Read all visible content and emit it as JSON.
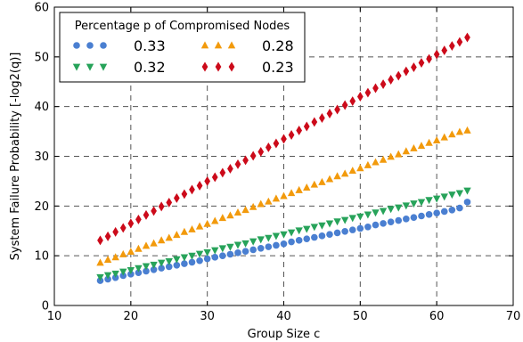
{
  "chart_data": {
    "type": "scatter",
    "xlabel": "Group Size c",
    "ylabel": "System Failure Probability [-log2(q)]",
    "xlim": [
      10,
      70
    ],
    "ylim": [
      0,
      60
    ],
    "xticks": [
      10,
      20,
      30,
      40,
      50,
      60,
      70
    ],
    "yticks": [
      0,
      10,
      20,
      30,
      40,
      50,
      60
    ],
    "grid": true,
    "legend": {
      "title": "Percentage p of Compromised Nodes",
      "placement": "top-left",
      "columns": 2
    },
    "x": [
      16,
      17,
      18,
      19,
      20,
      21,
      22,
      23,
      24,
      25,
      26,
      27,
      28,
      29,
      30,
      31,
      32,
      33,
      34,
      35,
      36,
      37,
      38,
      39,
      40,
      41,
      42,
      43,
      44,
      45,
      46,
      47,
      48,
      49,
      50,
      51,
      52,
      53,
      54,
      55,
      56,
      57,
      58,
      59,
      60,
      61,
      62,
      63,
      64
    ],
    "series": [
      {
        "name": "0.33",
        "marker": "circle",
        "color": "#4a7fd1",
        "values": [
          5.0,
          5.3,
          5.6,
          6.0,
          6.3,
          6.6,
          6.9,
          7.2,
          7.5,
          7.8,
          8.1,
          8.4,
          8.7,
          9.0,
          9.4,
          9.7,
          10.0,
          10.3,
          10.6,
          10.9,
          11.2,
          11.5,
          11.8,
          12.1,
          12.4,
          12.8,
          13.1,
          13.4,
          13.7,
          14.0,
          14.3,
          14.6,
          14.9,
          15.2,
          15.5,
          15.8,
          16.2,
          16.5,
          16.8,
          17.1,
          17.4,
          17.7,
          18.0,
          18.3,
          18.6,
          18.9,
          19.2,
          19.6,
          20.8
        ]
      },
      {
        "name": "0.32",
        "marker": "triangle-down",
        "color": "#27a35a",
        "values": [
          5.7,
          6.1,
          6.4,
          6.8,
          7.1,
          7.5,
          7.9,
          8.2,
          8.6,
          8.9,
          9.3,
          9.7,
          10.0,
          10.4,
          10.7,
          11.1,
          11.5,
          11.8,
          12.2,
          12.5,
          12.9,
          13.3,
          13.6,
          14.0,
          14.3,
          14.7,
          15.1,
          15.4,
          15.8,
          16.1,
          16.5,
          16.9,
          17.2,
          17.6,
          17.9,
          18.3,
          18.7,
          19.0,
          19.4,
          19.7,
          20.1,
          20.5,
          20.8,
          21.2,
          21.5,
          21.9,
          22.3,
          22.6,
          23.1
        ]
      },
      {
        "name": "0.28",
        "marker": "triangle-up",
        "color": "#f29a0c",
        "values": [
          8.6,
          9.2,
          9.7,
          10.3,
          10.8,
          11.4,
          12.0,
          12.5,
          13.1,
          13.6,
          14.2,
          14.8,
          15.3,
          15.9,
          16.4,
          17.0,
          17.6,
          18.1,
          18.7,
          19.2,
          19.8,
          20.4,
          20.9,
          21.5,
          22.0,
          22.6,
          23.2,
          23.7,
          24.3,
          24.8,
          25.4,
          26.0,
          26.5,
          27.1,
          27.6,
          28.2,
          28.8,
          29.3,
          29.9,
          30.4,
          31.0,
          31.6,
          32.1,
          32.7,
          33.2,
          33.8,
          34.4,
          34.9,
          35.2
        ]
      },
      {
        "name": "0.23",
        "marker": "diamond",
        "color": "#cc0a1a",
        "values": [
          13.1,
          13.9,
          14.8,
          15.6,
          16.5,
          17.3,
          18.2,
          19.0,
          19.9,
          20.7,
          21.6,
          22.4,
          23.3,
          24.1,
          25.0,
          25.8,
          26.7,
          27.5,
          28.4,
          29.2,
          30.1,
          30.9,
          31.8,
          32.6,
          33.5,
          34.3,
          35.2,
          36.0,
          36.9,
          37.7,
          38.6,
          39.4,
          40.3,
          41.1,
          42.0,
          42.8,
          43.7,
          44.5,
          45.4,
          46.2,
          47.1,
          47.9,
          48.8,
          49.6,
          50.5,
          51.3,
          52.2,
          53.0,
          53.9
        ]
      }
    ]
  }
}
